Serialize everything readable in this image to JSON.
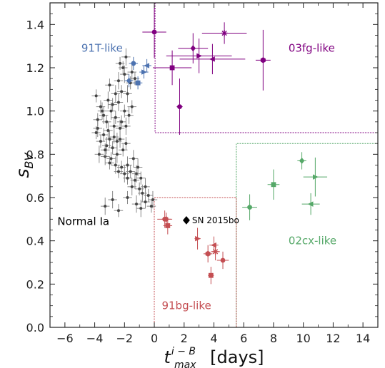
{
  "chart_data": {
    "type": "scatter",
    "xlabel": "t_max^(i−B) [days]",
    "ylabel": "s_BV",
    "xlim": [
      -7,
      15
    ],
    "ylim": [
      0,
      1.5
    ],
    "x_ticks": [
      -6,
      -4,
      -2,
      0,
      2,
      4,
      6,
      8,
      10,
      12,
      14
    ],
    "x_tick_labels": [
      "−6",
      "−4",
      "−2",
      "0",
      "2",
      "4",
      "6",
      "8",
      "10",
      "12",
      "14"
    ],
    "y_ticks": [
      0.0,
      0.2,
      0.4,
      0.6,
      0.8,
      1.0,
      1.2,
      1.4
    ],
    "y_tick_labels": [
      "0.0",
      "0.2",
      "0.4",
      "0.6",
      "0.8",
      "1.0",
      "1.2",
      "1.4"
    ],
    "grid": false,
    "regions": [
      {
        "name": "91T-like",
        "color": "#4c72b0",
        "label_x": -4.9,
        "label_y": 1.29,
        "boundary": []
      },
      {
        "name": "03fg-like",
        "color": "#800080",
        "label_x": 9.0,
        "label_y": 1.29,
        "boundary": [
          [
            0.05,
            1.5
          ],
          [
            0.05,
            0.9
          ],
          [
            15,
            0.9
          ]
        ]
      },
      {
        "name": "Normal Ia",
        "color": "#000000",
        "label_x": -6.5,
        "label_y": 0.49,
        "boundary": []
      },
      {
        "name": "02cx-like",
        "color": "#55a868",
        "label_x": 9.0,
        "label_y": 0.4,
        "boundary": [
          [
            5.5,
            0
          ],
          [
            5.5,
            0.85
          ],
          [
            15,
            0.85
          ]
        ]
      },
      {
        "name": "91bg-like",
        "color": "#c44e52",
        "label_x": 0.5,
        "label_y": 0.1,
        "boundary": [
          [
            0,
            0
          ],
          [
            0,
            0.6
          ],
          [
            5.5,
            0.6
          ],
          [
            5.5,
            0
          ]
        ]
      }
    ],
    "annotation": {
      "text": "SN 2015bo",
      "x": 2.15,
      "y": 0.495,
      "marker": "diamond",
      "color": "#000000"
    },
    "series": [
      {
        "group": "Normal Ia",
        "color": "#555555",
        "marker": "dot",
        "points": [
          [
            -3.9,
            1.07,
            0.3,
            0.03
          ],
          [
            -3.5,
            1.0,
            0.3,
            0.04
          ],
          [
            -3.2,
            0.95,
            0.3,
            0.03
          ],
          [
            -3.8,
            0.92,
            0.3,
            0.04
          ],
          [
            -3.4,
            0.89,
            0.3,
            0.03
          ],
          [
            -3.0,
            0.87,
            0.3,
            0.04
          ],
          [
            -3.6,
            0.86,
            0.3,
            0.03
          ],
          [
            -3.2,
            0.84,
            0.3,
            0.04
          ],
          [
            -2.8,
            0.83,
            0.3,
            0.03
          ],
          [
            -3.7,
            0.8,
            0.3,
            0.04
          ],
          [
            -3.3,
            0.79,
            0.3,
            0.04
          ],
          [
            -2.9,
            0.78,
            0.3,
            0.03
          ],
          [
            -2.5,
            0.8,
            0.3,
            0.04
          ],
          [
            -3.0,
            0.76,
            0.3,
            0.03
          ],
          [
            -2.6,
            0.75,
            0.3,
            0.04
          ],
          [
            -2.2,
            0.74,
            0.3,
            0.03
          ],
          [
            -1.8,
            0.75,
            0.3,
            0.04
          ],
          [
            -2.4,
            0.72,
            0.3,
            0.03
          ],
          [
            -2.0,
            0.71,
            0.3,
            0.04
          ],
          [
            -1.6,
            0.72,
            0.3,
            0.03
          ],
          [
            -1.2,
            0.71,
            0.3,
            0.04
          ],
          [
            -1.8,
            0.69,
            0.3,
            0.03
          ],
          [
            -1.3,
            0.68,
            0.3,
            0.04
          ],
          [
            -0.9,
            0.69,
            0.3,
            0.03
          ],
          [
            -1.5,
            0.65,
            0.3,
            0.04
          ],
          [
            -1.0,
            0.64,
            0.3,
            0.03
          ],
          [
            -0.6,
            0.65,
            0.3,
            0.04
          ],
          [
            -0.8,
            0.62,
            0.3,
            0.04
          ],
          [
            -0.4,
            0.61,
            0.3,
            0.03
          ],
          [
            -1.8,
            0.6,
            0.3,
            0.03
          ],
          [
            -2.8,
            0.59,
            0.3,
            0.04
          ],
          [
            -1.2,
            0.57,
            0.3,
            0.04
          ],
          [
            -0.6,
            0.58,
            0.3,
            0.03
          ],
          [
            -0.1,
            0.59,
            0.3,
            0.04
          ],
          [
            -0.9,
            0.55,
            0.3,
            0.04
          ],
          [
            -0.2,
            0.56,
            0.3,
            0.03
          ],
          [
            -3.3,
            0.56,
            0.3,
            0.04
          ],
          [
            -2.4,
            0.54,
            0.3,
            0.03
          ],
          [
            -2.3,
            0.92,
            0.3,
            0.04
          ],
          [
            -2.5,
            0.86,
            0.3,
            0.04
          ],
          [
            -2.1,
            0.82,
            0.3,
            0.03
          ],
          [
            -2.7,
            0.93,
            0.3,
            0.04
          ],
          [
            -2.2,
            0.95,
            0.3,
            0.03
          ],
          [
            -1.9,
            0.93,
            0.3,
            0.04
          ],
          [
            -2.0,
            1.0,
            0.3,
            0.03
          ],
          [
            -1.7,
            0.98,
            0.3,
            0.04
          ],
          [
            -1.5,
            1.02,
            0.3,
            0.03
          ],
          [
            -2.4,
            1.04,
            0.3,
            0.04
          ],
          [
            -2.8,
            1.03,
            0.3,
            0.03
          ],
          [
            -3.1,
            1.05,
            0.3,
            0.04
          ],
          [
            -3.6,
            1.02,
            0.3,
            0.03
          ],
          [
            -2.6,
            1.08,
            0.3,
            0.04
          ],
          [
            -2.2,
            1.09,
            0.3,
            0.03
          ],
          [
            -1.8,
            1.08,
            0.3,
            0.04
          ],
          [
            -3.0,
            1.12,
            0.3,
            0.03
          ],
          [
            -2.4,
            1.14,
            0.3,
            0.04
          ],
          [
            -1.6,
            1.13,
            0.3,
            0.03
          ],
          [
            -2.0,
            1.17,
            0.3,
            0.04
          ],
          [
            -2.3,
            1.22,
            0.3,
            0.03
          ],
          [
            -1.9,
            1.25,
            0.3,
            0.04
          ],
          [
            -2.1,
            1.2,
            0.3,
            0.03
          ],
          [
            -1.5,
            1.18,
            0.3,
            0.04
          ],
          [
            -1.3,
            1.15,
            0.3,
            0.03
          ],
          [
            -3.4,
            0.98,
            0.3,
            0.04
          ],
          [
            -3.8,
            0.96,
            0.3,
            0.03
          ],
          [
            -3.1,
            0.91,
            0.3,
            0.04
          ],
          [
            -2.7,
            0.88,
            0.3,
            0.03
          ],
          [
            -2.3,
            0.87,
            0.3,
            0.04
          ],
          [
            -1.9,
            0.85,
            0.3,
            0.03
          ],
          [
            -2.9,
            1.0,
            0.3,
            0.04
          ],
          [
            -3.3,
            0.82,
            0.3,
            0.03
          ],
          [
            -1.4,
            0.78,
            0.3,
            0.04
          ],
          [
            -3.9,
            0.9,
            0.3,
            0.03
          ],
          [
            -1.1,
            0.74,
            0.3,
            0.04
          ],
          [
            -2.6,
            0.97,
            0.3,
            0.03
          ]
        ]
      },
      {
        "group": "91T-like",
        "color": "#4c72b0",
        "marker": "mixed",
        "points": [
          [
            -1.4,
            1.22,
            0.3,
            0.03
          ],
          [
            -1.1,
            1.13,
            0.3,
            0.03
          ],
          [
            -1.7,
            1.14,
            0.3,
            0.03
          ],
          [
            -0.7,
            1.18,
            0.3,
            0.03
          ],
          [
            -0.5,
            1.21,
            0.3,
            0.03
          ]
        ]
      },
      {
        "group": "03fg-like",
        "color": "#800080",
        "marker": "mixed",
        "points": [
          [
            0.0,
            1.365,
            0.8,
            0.12
          ],
          [
            1.2,
            1.2,
            1.3,
            0.08
          ],
          [
            2.6,
            1.29,
            1.0,
            0.07
          ],
          [
            3.0,
            1.255,
            2.2,
            0.08
          ],
          [
            3.9,
            1.24,
            2.2,
            0.07
          ],
          [
            4.7,
            1.36,
            1.5,
            0.05
          ],
          [
            7.3,
            1.235,
            0.5,
            0.14
          ],
          [
            1.7,
            1.02,
            0.2,
            0.13
          ]
        ]
      },
      {
        "group": "02cx-like",
        "color": "#55a868",
        "marker": "mixed",
        "points": [
          [
            6.4,
            0.555,
            0.5,
            0.06
          ],
          [
            8.0,
            0.66,
            0.4,
            0.07
          ],
          [
            9.9,
            0.77,
            0.3,
            0.04
          ],
          [
            10.8,
            0.695,
            0.8,
            0.09
          ],
          [
            10.5,
            0.57,
            0.6,
            0.05
          ]
        ]
      },
      {
        "group": "91bg-like",
        "color": "#c44e52",
        "marker": "mixed",
        "points": [
          [
            0.7,
            0.5,
            0.5,
            0.04
          ],
          [
            0.9,
            0.47,
            0.3,
            0.04
          ],
          [
            0.8,
            0.5,
            0.3,
            0.03
          ],
          [
            2.9,
            0.41,
            0.2,
            0.05
          ],
          [
            4.0,
            0.38,
            0.3,
            0.04
          ],
          [
            4.1,
            0.35,
            0.3,
            0.04
          ],
          [
            3.6,
            0.34,
            0.3,
            0.04
          ],
          [
            4.6,
            0.31,
            0.4,
            0.04
          ],
          [
            3.8,
            0.24,
            0.2,
            0.04
          ]
        ]
      }
    ]
  }
}
